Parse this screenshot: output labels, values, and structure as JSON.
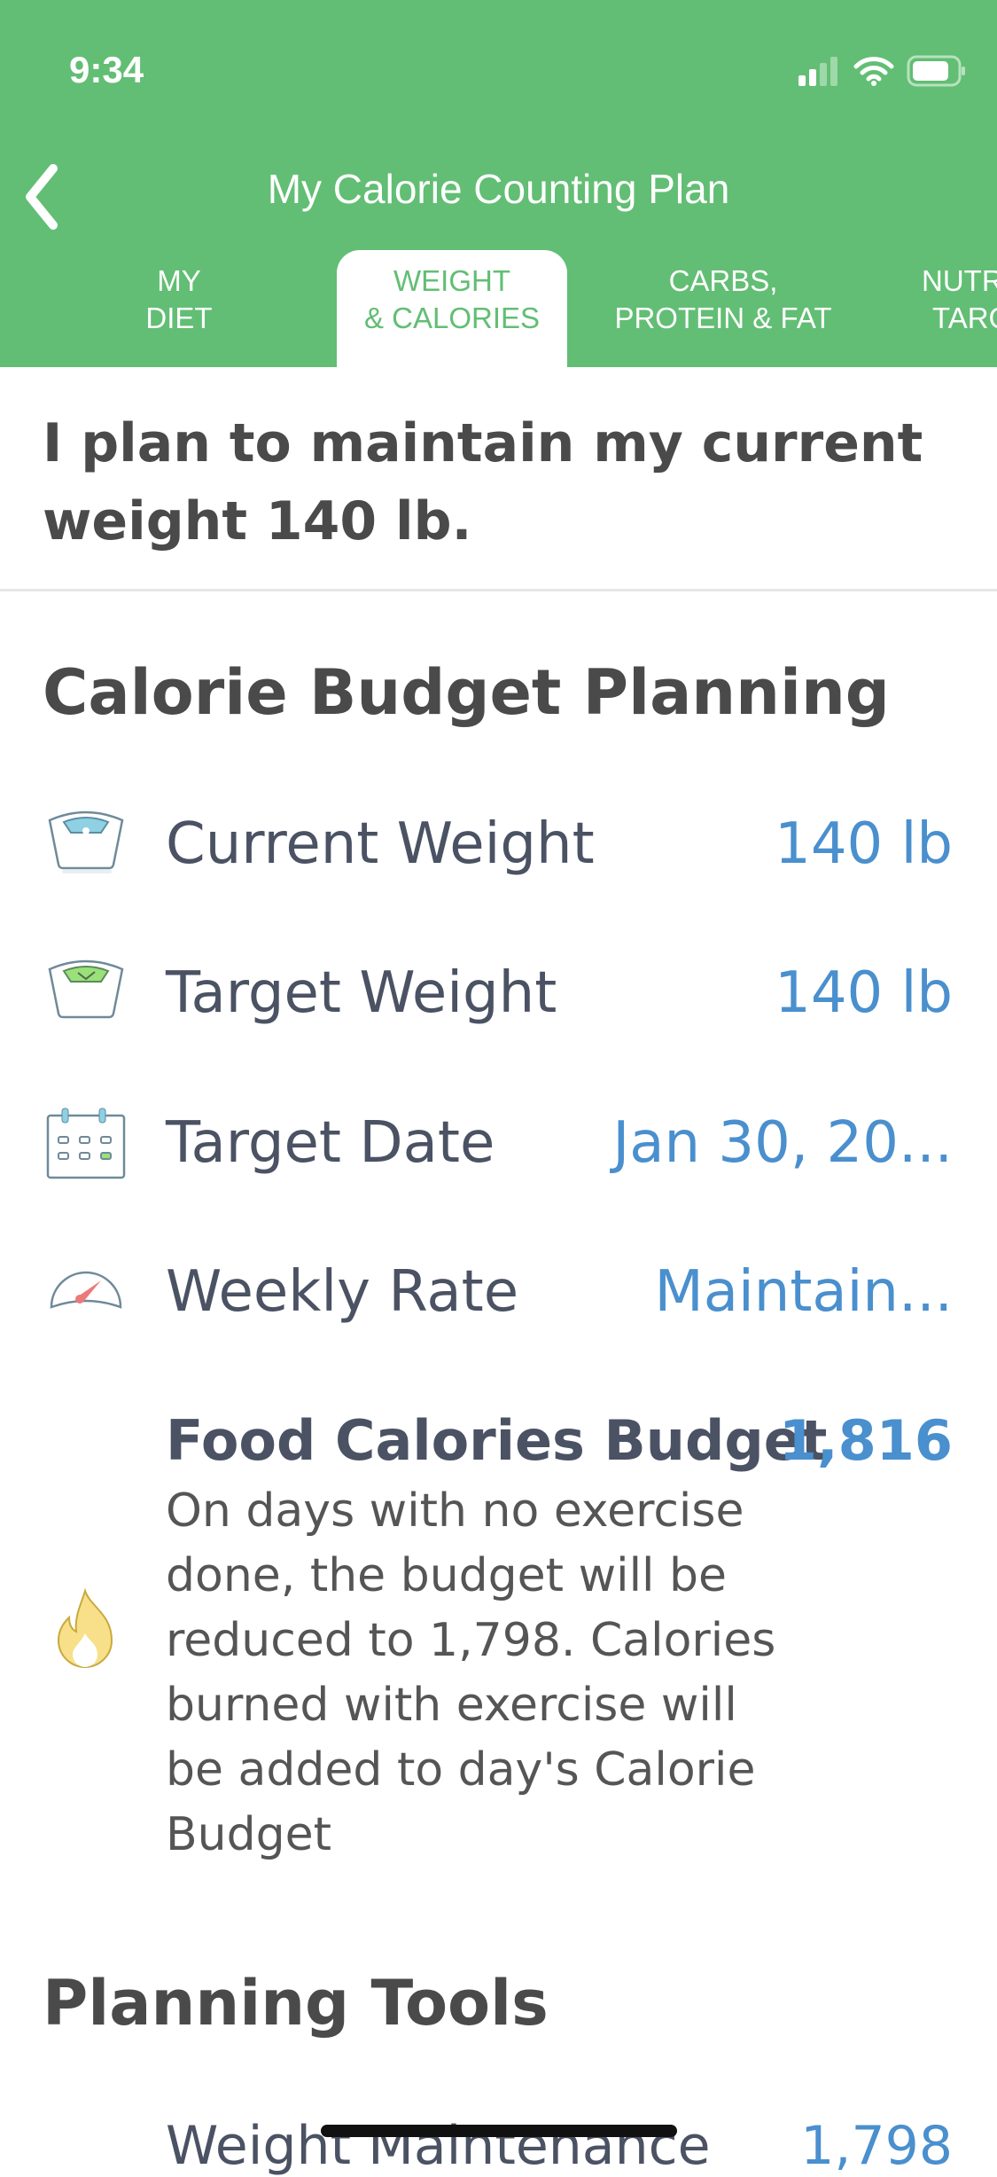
{
  "status_bar": {
    "time": "9:34"
  },
  "nav": {
    "title": "My Calorie Counting Plan"
  },
  "tabs": [
    {
      "line1": "MY",
      "line2": "DIET"
    },
    {
      "line1": "WEIGHT",
      "line2": "& CALORIES",
      "active": true
    },
    {
      "line1": "CARBS,",
      "line2": "PROTEIN & FAT"
    },
    {
      "line1": "NUTR",
      "line2": "TARG"
    }
  ],
  "plan_statement": "I plan to maintain my current weight 140 lb.",
  "budget_section": {
    "title": "Calorie Budget Planning",
    "rows": [
      {
        "label": "Current Weight",
        "value": "140 lb",
        "icon": "scale-icon"
      },
      {
        "label": "Target Weight",
        "value": "140 lb",
        "icon": "scale-check-icon"
      },
      {
        "label": "Target Date",
        "value": "Jan 30, 20...",
        "icon": "calendar-icon"
      },
      {
        "label": "Weekly Rate",
        "value": "Maintain...",
        "icon": "gauge-icon"
      }
    ],
    "food_budget": {
      "label": "Food Calories Budget",
      "value": "1,816",
      "description": "On days with no exercise done, the budget will be reduced to 1,798. Calories burned with exercise will be added to day's Calorie Budget",
      "icon": "flame-icon"
    }
  },
  "tools_section": {
    "title": "Planning Tools",
    "rows": [
      {
        "label": "Weight Maintenance",
        "value": "1,798"
      }
    ]
  },
  "colors": {
    "header": "#62be74",
    "value": "#4a8fce",
    "text": "#4a5263"
  }
}
